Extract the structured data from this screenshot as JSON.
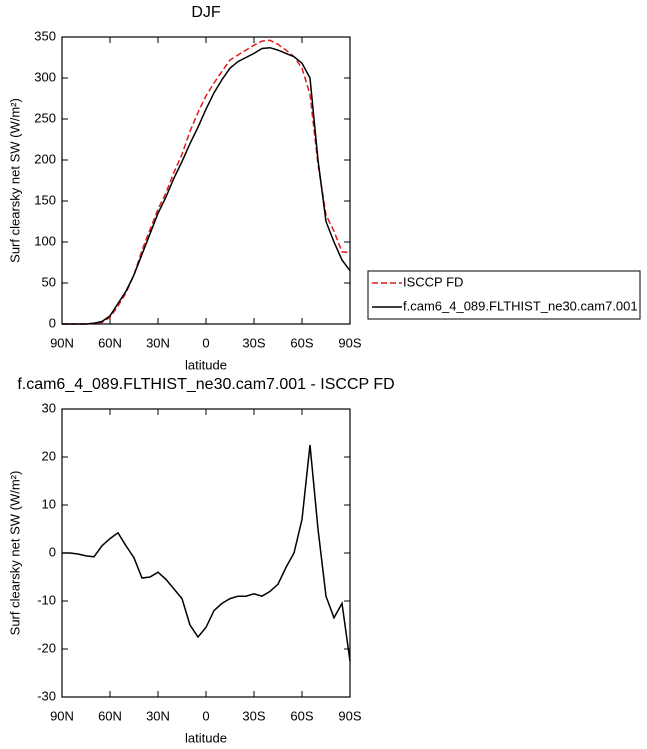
{
  "chart_data": [
    {
      "type": "line",
      "title": "DJF",
      "x_label": "latitude",
      "y_label": "Surf clearsky net SW (W/m²)",
      "x": [
        90,
        85,
        80,
        75,
        70,
        65,
        60,
        55,
        50,
        45,
        40,
        35,
        30,
        25,
        20,
        15,
        10,
        5,
        0,
        -5,
        -10,
        -15,
        -20,
        -25,
        -30,
        -35,
        -40,
        -45,
        -50,
        -55,
        -60,
        -65,
        -70,
        -75,
        -80,
        -85,
        -90
      ],
      "xlim": [
        90,
        -90
      ],
      "xticks": [
        {
          "value": 90,
          "label": "90N"
        },
        {
          "value": 60,
          "label": "60N"
        },
        {
          "value": 30,
          "label": "30N"
        },
        0,
        {
          "value": -30,
          "label": "30S"
        },
        {
          "value": -60,
          "label": "60S"
        },
        {
          "value": -90,
          "label": "90S"
        }
      ],
      "ylim": [
        0,
        350
      ],
      "yticks": [
        0,
        50,
        100,
        150,
        200,
        250,
        300,
        350
      ],
      "legend": "right",
      "series": [
        {
          "name": "ISCCP FD",
          "color": "#e41a1c",
          "line_style": "dashed",
          "values": [
            0,
            0,
            0,
            0,
            1,
            2,
            8,
            22,
            38,
            60,
            90,
            115,
            140,
            160,
            185,
            207,
            235,
            258,
            278,
            294,
            308,
            322,
            328,
            334,
            340,
            345,
            346,
            341,
            334,
            326,
            312,
            280,
            195,
            133,
            113,
            88,
            87
          ]
        },
        {
          "name": "f.cam6_4_089.FLTHIST_ne30.cam7.001",
          "color": "#000000",
          "line_style": "solid",
          "values": [
            0,
            0,
            0,
            0,
            1,
            3,
            10,
            25,
            40,
            60,
            85,
            110,
            135,
            155,
            178,
            198,
            220,
            240,
            262,
            282,
            298,
            312,
            320,
            325,
            330,
            336,
            337,
            334,
            330,
            326,
            318,
            300,
            200,
            125,
            100,
            78,
            65
          ]
        }
      ]
    },
    {
      "type": "line",
      "title": "f.cam6_4_089.FLTHIST_ne30.cam7.001 - ISCCP FD",
      "x_label": "latitude",
      "y_label": "Surf clearsky net SW (W/m²)",
      "x": [
        90,
        85,
        80,
        75,
        70,
        65,
        60,
        55,
        50,
        45,
        40,
        35,
        30,
        25,
        20,
        15,
        10,
        5,
        0,
        -5,
        -10,
        -15,
        -20,
        -25,
        -30,
        -35,
        -40,
        -45,
        -50,
        -55,
        -60,
        -65,
        -70,
        -75,
        -80,
        -85,
        -90
      ],
      "xlim": [
        90,
        -90
      ],
      "xticks": [
        {
          "value": 90,
          "label": "90N"
        },
        {
          "value": 60,
          "label": "60N"
        },
        {
          "value": 30,
          "label": "30N"
        },
        0,
        {
          "value": -30,
          "label": "30S"
        },
        {
          "value": -60,
          "label": "60S"
        },
        {
          "value": -90,
          "label": "90S"
        }
      ],
      "ylim": [
        -30,
        30
      ],
      "yticks": [
        -30,
        -20,
        -10,
        0,
        10,
        20,
        30
      ],
      "series": [
        {
          "color": "#000000",
          "line_style": "solid",
          "values": [
            0,
            0,
            -0.2,
            -0.6,
            -0.8,
            1.5,
            3,
            4.2,
            1.5,
            -1,
            -5.2,
            -5,
            -4,
            -5.5,
            -7.5,
            -9.5,
            -15,
            -17.5,
            -15.5,
            -12,
            -10.5,
            -9.5,
            -9,
            -9,
            -8.5,
            -9,
            -8,
            -6.5,
            -3,
            0,
            7,
            22.5,
            5,
            -9,
            -13.5,
            -10.5,
            -22.5
          ]
        }
      ]
    }
  ]
}
